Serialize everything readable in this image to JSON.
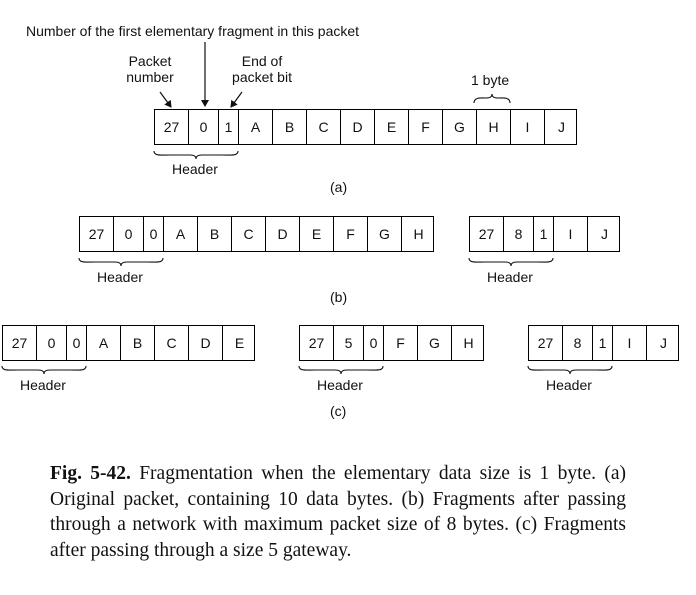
{
  "annotations": {
    "first_fragment": "Number of the first elementary fragment in this packet",
    "packet_number": "Packet\nnumber",
    "end_of_packet": "End of\npacket bit",
    "one_byte": "1 byte",
    "header": "Header"
  },
  "panels": {
    "a": {
      "label": "(a)",
      "packets": [
        {
          "cells": [
            "27",
            "0",
            "1",
            "A",
            "B",
            "C",
            "D",
            "E",
            "F",
            "G",
            "H",
            "I",
            "J"
          ]
        }
      ]
    },
    "b": {
      "label": "(b)",
      "packets": [
        {
          "cells": [
            "27",
            "0",
            "0",
            "A",
            "B",
            "C",
            "D",
            "E",
            "F",
            "G",
            "H"
          ]
        },
        {
          "cells": [
            "27",
            "8",
            "1",
            "I",
            "J"
          ]
        }
      ]
    },
    "c": {
      "label": "(c)",
      "packets": [
        {
          "cells": [
            "27",
            "0",
            "0",
            "A",
            "B",
            "C",
            "D",
            "E"
          ]
        },
        {
          "cells": [
            "27",
            "5",
            "0",
            "F",
            "G",
            "H"
          ]
        },
        {
          "cells": [
            "27",
            "8",
            "1",
            "I",
            "J"
          ]
        }
      ]
    }
  },
  "caption": {
    "label": "Fig. 5-42.",
    "text": "Fragmentation when the elementary data size is 1 byte. (a) Original packet, containing 10 data bytes. (b) Fragments after passing through a network with maximum packet size of 8 bytes. (c) Fragments after passing through a size 5 gateway."
  }
}
